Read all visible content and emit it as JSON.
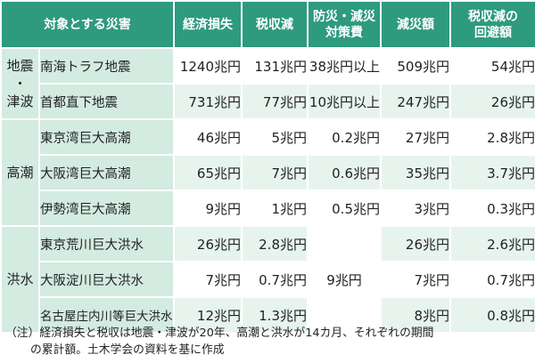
{
  "table": {
    "headers": [
      "対象とする災害",
      "経済損失",
      "税収減",
      "防災・減災\n対策費",
      "減災額",
      "税収減の\n回避額"
    ],
    "groups": [
      {
        "label": "地震\n・\n津波",
        "rows": [
          {
            "name": "南海トラフ地震",
            "loss": "1240兆円",
            "tax": "131兆円",
            "cost": "38兆円以上",
            "reduce": "509兆円",
            "avoid": "54兆円"
          },
          {
            "name": "首都直下地震",
            "loss": "731兆円",
            "tax": "77兆円",
            "cost": "10兆円以上",
            "reduce": "247兆円",
            "avoid": "26兆円"
          }
        ]
      },
      {
        "label": "高潮",
        "rows": [
          {
            "name": "東京湾巨大高潮",
            "loss": "46兆円",
            "tax": "5兆円",
            "cost": "0.2兆円",
            "reduce": "27兆円",
            "avoid": "2.8兆円"
          },
          {
            "name": "大阪湾巨大高潮",
            "loss": "65兆円",
            "tax": "7兆円",
            "cost": "0.6兆円",
            "reduce": "35兆円",
            "avoid": "3.7兆円"
          },
          {
            "name": "伊勢湾巨大高潮",
            "loss": "9兆円",
            "tax": "1兆円",
            "cost": "0.5兆円",
            "reduce": "3兆円",
            "avoid": "0.3兆円"
          }
        ]
      },
      {
        "label": "洪水",
        "shared_cost": "9兆円",
        "rows": [
          {
            "name": "東京荒川巨大洪水",
            "loss": "26兆円",
            "tax": "2.8兆円",
            "reduce": "26兆円",
            "avoid": "2.6兆円"
          },
          {
            "name": "大阪淀川巨大洪水",
            "loss": "7兆円",
            "tax": "0.7兆円",
            "reduce": "7兆円",
            "avoid": "0.7兆円"
          },
          {
            "name": "名古屋庄内川等巨大洪水",
            "loss": "12兆円",
            "tax": "1.3兆円",
            "reduce": "8兆円",
            "avoid": "0.8兆円"
          }
        ]
      }
    ]
  },
  "note": {
    "line1": "（注）経済損失と税収は地震・津波が20年、高潮と洪水が14カ月、それぞれの期間",
    "line2": "の累計額。土木学会の資料を基に作成"
  }
}
